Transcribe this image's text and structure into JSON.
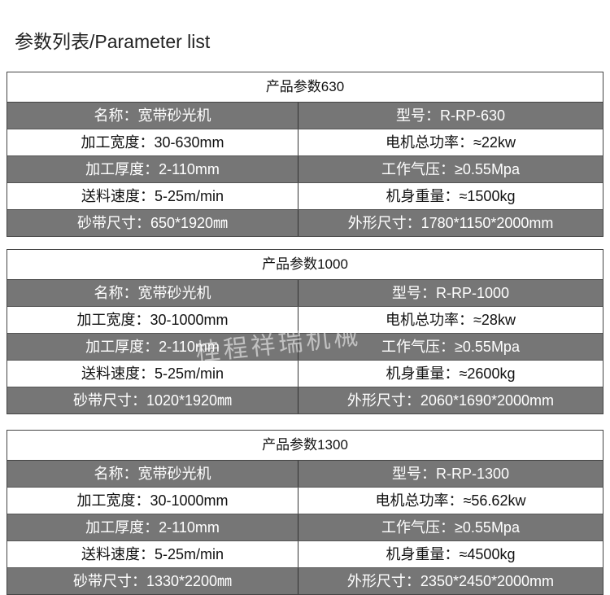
{
  "page_title": "参数列表/Parameter list",
  "watermark": "桂程祥瑞机械",
  "tables": [
    {
      "title": "产品参数630",
      "rows": [
        [
          "名称：宽带砂光机",
          "型号：R-RP-630"
        ],
        [
          "加工宽度：30-630mm",
          "电机总功率：≈22kw"
        ],
        [
          "加工厚度：2-110mm",
          "工作气压：≥0.55Mpa"
        ],
        [
          "送料速度：5-25m/min",
          "机身重量：≈1500kg"
        ],
        [
          "砂带尺寸：650*1920㎜",
          "外形尺寸：1780*1150*2000mm"
        ]
      ]
    },
    {
      "title": "产品参数1000",
      "rows": [
        [
          "名称：宽带砂光机",
          "型号：R-RP-1000"
        ],
        [
          "加工宽度：30-1000mm",
          "电机总功率：≈28kw"
        ],
        [
          "加工厚度：2-110mm",
          "工作气压：≥0.55Mpa"
        ],
        [
          "送料速度：5-25m/min",
          "机身重量：≈2600kg"
        ],
        [
          "砂带尺寸：1020*1920㎜",
          "外形尺寸：2060*1690*2000mm"
        ]
      ]
    },
    {
      "title": "产品参数1300",
      "rows": [
        [
          "名称：宽带砂光机",
          "型号：R-RP-1300"
        ],
        [
          "加工宽度：30-1000mm",
          "电机总功率：≈56.62kw"
        ],
        [
          "加工厚度：2-110mm",
          "工作气压：≥0.55Mpa"
        ],
        [
          "送料速度：5-25m/min",
          "机身重量：≈4500kg"
        ],
        [
          "砂带尺寸：1330*2200㎜",
          "外形尺寸：2350*2450*2000mm"
        ]
      ]
    }
  ],
  "colors": {
    "gray_row": "#767676",
    "border": "#444444"
  }
}
